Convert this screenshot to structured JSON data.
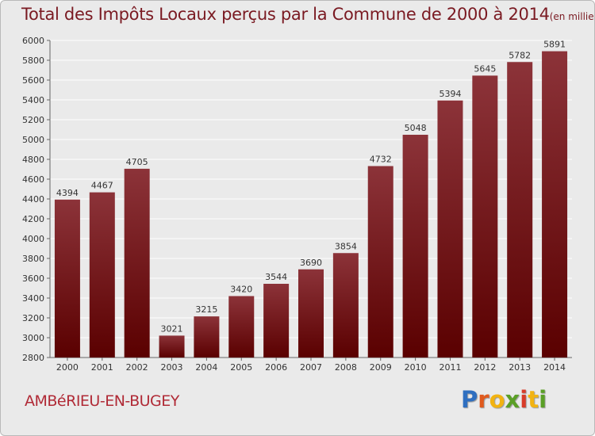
{
  "header": {
    "title": "Total des Impôts Locaux perçus par la Commune de 2000 à 2014",
    "unit": "(en milliers d'€)"
  },
  "footer": {
    "commune": "AMBéRIEU-EN-BUGEY",
    "logo": [
      "P",
      "r",
      "o",
      "x",
      "i",
      "t",
      "i"
    ],
    "logo_colors": [
      "#2f6fc0",
      "#e05a1e",
      "#f2b312",
      "#5a9f26",
      "#d83c2a",
      "#f2b312",
      "#5a9f26"
    ]
  },
  "colors": {
    "bar_top": "#8c3339",
    "bar_bottom": "#5a0000",
    "grid": "#ffffff",
    "background": "#eaeaea"
  },
  "chart_data": {
    "type": "bar",
    "title": "Total des Impôts Locaux perçus par la Commune de 2000 à 2014",
    "xlabel": "",
    "ylabel": "(en milliers d'€)",
    "categories": [
      "2000",
      "2001",
      "2002",
      "2003",
      "2004",
      "2005",
      "2006",
      "2007",
      "2008",
      "2009",
      "2010",
      "2011",
      "2012",
      "2013",
      "2014"
    ],
    "values": [
      4394,
      4467,
      4705,
      3021,
      3215,
      3420,
      3544,
      3690,
      3854,
      4732,
      5048,
      5394,
      5645,
      5782,
      5891
    ],
    "ylim": [
      2800,
      6000
    ],
    "yticks": [
      2800,
      3000,
      3200,
      3400,
      3600,
      3800,
      4000,
      4200,
      4400,
      4600,
      4800,
      5000,
      5200,
      5400,
      5600,
      5800,
      6000
    ],
    "grid": true
  }
}
